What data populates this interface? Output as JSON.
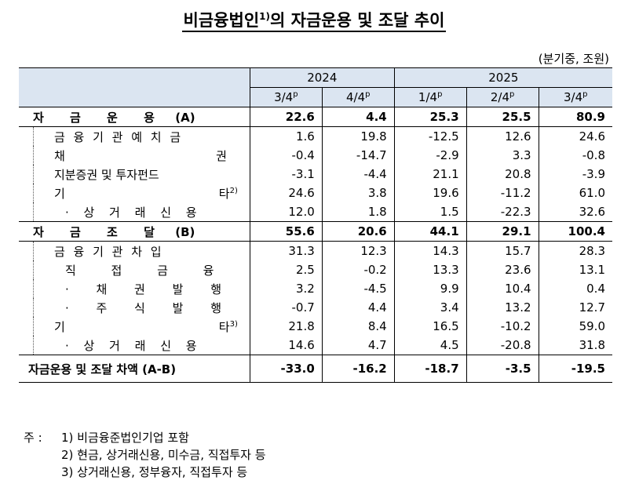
{
  "title": "비금융법인",
  "title_sup": "1)",
  "title_rest": "의 자금운용 및 조달 추이",
  "unit": "(분기중, 조원)",
  "years": [
    "2024",
    "2025"
  ],
  "quarters": [
    "3/4",
    "4/4",
    "1/4",
    "2/4",
    "3/4"
  ],
  "quarter_sup": [
    "p",
    "p",
    "p",
    "p",
    "p"
  ],
  "sections": {
    "use": {
      "label": "자 금 운 용",
      "suffix": "(A)",
      "values": [
        "22.6",
        "4.4",
        "25.3",
        "25.5",
        "80.9"
      ],
      "rows": [
        {
          "label": "금 융 기 관 예 치 금",
          "sup": "",
          "values": [
            "1.6",
            "19.8",
            "-12.5",
            "12.6",
            "24.6"
          ]
        },
        {
          "label_l": "채",
          "label_r": "권",
          "sup": "",
          "values": [
            "-0.4",
            "-14.7",
            "-2.9",
            "3.3",
            "-0.8"
          ]
        },
        {
          "label": "지분증권 및 투자펀드",
          "sup": "",
          "values": [
            "-3.1",
            "-4.4",
            "21.1",
            "20.8",
            "-3.9"
          ]
        },
        {
          "label_l": "기",
          "label_r": "타",
          "sup": "2)",
          "values": [
            "24.6",
            "3.8",
            "19.6",
            "-11.2",
            "61.0"
          ]
        },
        {
          "label": "· 상 거 래 신 용",
          "sup": "",
          "values": [
            "12.0",
            "1.8",
            "1.5",
            "-22.3",
            "32.6"
          ]
        }
      ]
    },
    "raise": {
      "label": "자 금 조 달",
      "suffix": "(B)",
      "values": [
        "55.6",
        "20.6",
        "44.1",
        "29.1",
        "100.4"
      ],
      "rows": [
        {
          "label": "금 융 기 관 차 입",
          "sup": "",
          "values": [
            "31.3",
            "12.3",
            "14.3",
            "15.7",
            "28.3"
          ]
        },
        {
          "label": "직 접 금 융",
          "sup": "",
          "values": [
            "2.5",
            "-0.2",
            "13.3",
            "23.6",
            "13.1"
          ]
        },
        {
          "label": "· 채 권 발 행",
          "sup": "",
          "values": [
            "3.2",
            "-4.5",
            "9.9",
            "10.4",
            "0.4"
          ]
        },
        {
          "label": "· 주 식 발 행",
          "sup": "",
          "values": [
            "-0.7",
            "4.4",
            "3.4",
            "13.2",
            "12.7"
          ]
        },
        {
          "label_l": "기",
          "label_r": "타",
          "sup": "3)",
          "values": [
            "21.8",
            "8.4",
            "16.5",
            "-10.2",
            "59.0"
          ]
        },
        {
          "label": "· 상 거 래 신 용",
          "sup": "",
          "values": [
            "14.6",
            "4.7",
            "4.5",
            "-20.8",
            "31.8"
          ]
        }
      ]
    }
  },
  "total": {
    "label": "자금운용 및 조달 차액",
    "suffix": "(A-B)",
    "values": [
      "-33.0",
      "-16.2",
      "-18.7",
      "-3.5",
      "-19.5"
    ]
  },
  "notes": {
    "prefix": "주 :",
    "items": [
      "1) 비금융준법인기업 포함",
      "2) 현금, 상거래신용, 미수금, 직접투자 등",
      "3) 상거래신용, 정부융자, 직접투자 등"
    ]
  }
}
